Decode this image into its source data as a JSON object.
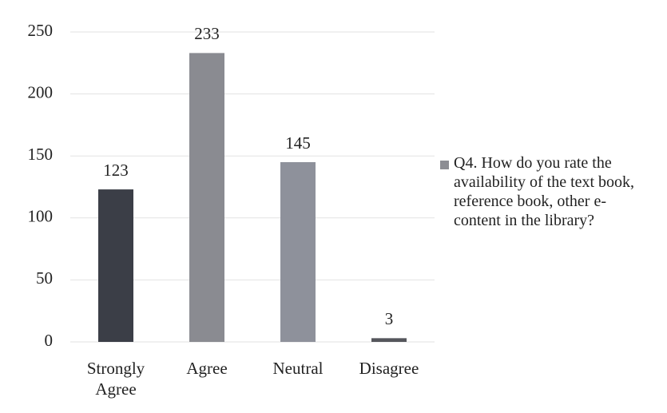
{
  "chart_data": {
    "type": "bar",
    "categories": [
      "Strongly Agree",
      "Agree",
      "Neutral",
      "Disagree"
    ],
    "series": [
      {
        "name": "Q4. How do you rate the availability of the text book, reference book, other e-content in the library?",
        "color": "#8c8d93",
        "colors": [
          "#3b3e47",
          "#8a8b91",
          "#8e919b",
          "#55565c"
        ],
        "values": [
          123,
          233,
          145,
          3
        ]
      }
    ],
    "ylim": [
      0,
      250
    ],
    "yticks": [
      0,
      50,
      100,
      150,
      200,
      250
    ],
    "grid": true
  }
}
